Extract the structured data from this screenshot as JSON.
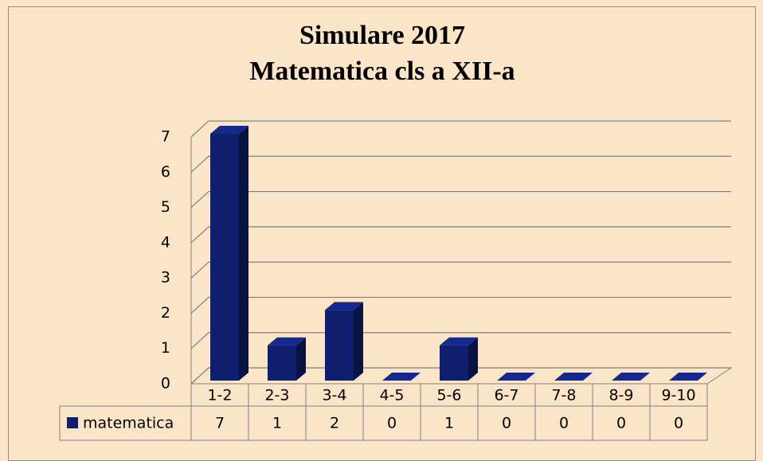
{
  "chart_data": {
    "type": "bar3d",
    "title": "Simulare 2017",
    "subtitle": "Matematica cls a XII-a",
    "categories": [
      "1-2",
      "2-3",
      "3-4",
      "4-5",
      "5-6",
      "6-7",
      "7-8",
      "8-9",
      "9-10"
    ],
    "series": [
      {
        "name": "matematica",
        "color": "#0f1f6e",
        "values": [
          7,
          1,
          2,
          0,
          1,
          0,
          0,
          0,
          0
        ]
      }
    ],
    "ylim": [
      0,
      7
    ],
    "yticks": [
      0,
      1,
      2,
      3,
      4,
      5,
      6,
      7
    ],
    "grid": true,
    "data_table": true
  }
}
